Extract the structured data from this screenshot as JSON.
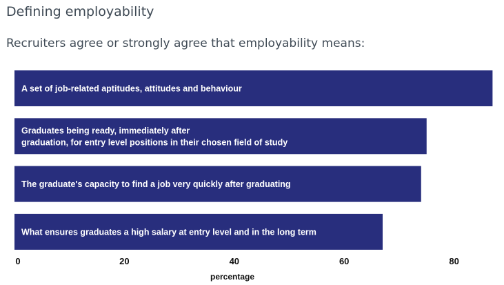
{
  "page": {
    "title": "Defining employability",
    "subtitle": "Recruiters agree or strongly agree that employability means:"
  },
  "chart_data": {
    "type": "bar",
    "orientation": "horizontal",
    "bar_color": "#282e7d",
    "categories": [
      [
        "A set of job-related aptitudes, attitudes and behaviour"
      ],
      [
        "Graduates being ready, immediately after",
        "graduation, for entry level positions in their chosen field of study"
      ],
      [
        "The graduate's capacity to find a job very quickly after graduating"
      ],
      [
        "What ensures graduates a high salary at entry level and in the long term"
      ]
    ],
    "values": [
      87,
      75,
      74,
      67
    ],
    "xlim": [
      0,
      87
    ],
    "xticks": [
      0,
      20,
      40,
      60,
      80
    ],
    "xlabel": "percentage",
    "ylabel": "",
    "grid": false,
    "legend": "none"
  }
}
